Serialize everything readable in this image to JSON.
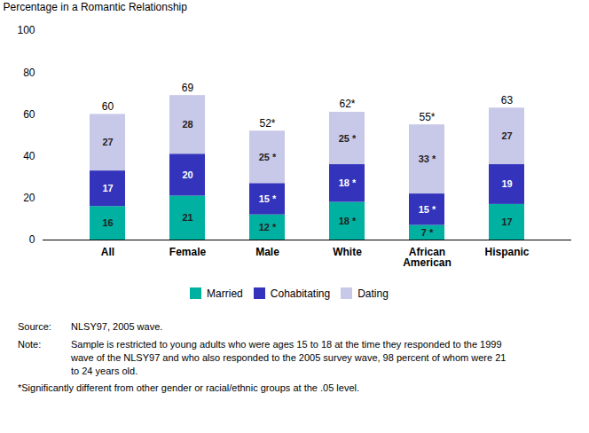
{
  "chart_data": {
    "type": "bar",
    "stacked": true,
    "data_labels": true,
    "ylabel": "Percentage in a Romantic Relationship",
    "categories": [
      "All",
      "Female",
      "Male",
      "White",
      "African\nAmerican",
      "Hispanic"
    ],
    "series": [
      {
        "name": "Married",
        "color": "#00b0a0",
        "values": [
          16,
          21,
          12,
          18,
          7,
          17
        ],
        "value_labels": [
          "16",
          "21",
          "12 *",
          "18 *",
          "7 *",
          "17"
        ]
      },
      {
        "name": "Cohabitating",
        "color": "#3333bb",
        "values": [
          17,
          20,
          15,
          18,
          15,
          19
        ],
        "value_labels": [
          "17",
          "20",
          "15 *",
          "18 *",
          "15 *",
          "19"
        ]
      },
      {
        "name": "Dating",
        "color": "#c8c8e8",
        "values": [
          27,
          28,
          25,
          25,
          33,
          27
        ],
        "value_labels": [
          "27",
          "28",
          "25 *",
          "25 *",
          "33 *",
          "27"
        ]
      }
    ],
    "totals": [
      60,
      69,
      52,
      62,
      55,
      63
    ],
    "total_labels": [
      "60",
      "69",
      "52*",
      "62*",
      "55*",
      "63"
    ],
    "ylim": [
      0,
      100
    ],
    "yticks": [
      0,
      20,
      40,
      60,
      80,
      100
    ],
    "source_label": "Source:",
    "source": "NLSY97, 2005 wave.",
    "note_label": "Note:",
    "note": "Sample is restricted to young adults who were ages 15 to 18 at the time they responded to the 1999\nwave of the NLSY97 and who also responded to the 2005 survey wave, 98 percent of whom were 21\nto 24 years old.",
    "footnote": "*Significantly different from other gender or racial/ethnic groups at the .05 level."
  }
}
